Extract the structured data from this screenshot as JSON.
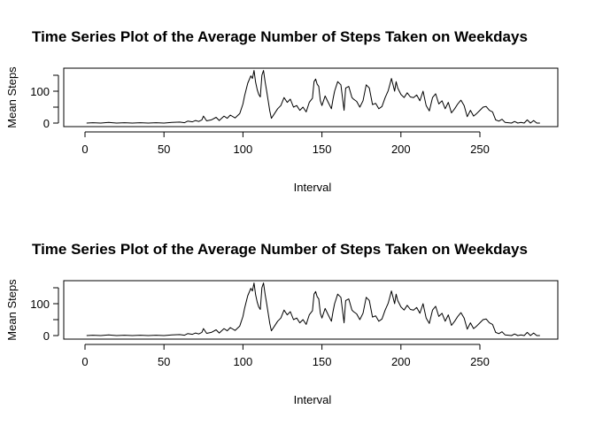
{
  "chart_data": [
    {
      "type": "line",
      "title": "Time Series Plot of the Average Number of Steps Taken on Weekdays",
      "xlabel": "Interval",
      "ylabel": "Mean Steps",
      "xlim": [
        0,
        288
      ],
      "ylim": [
        0,
        165
      ],
      "x_ticks": [
        0,
        50,
        100,
        150,
        200,
        250
      ],
      "y_ticks": [
        0,
        100
      ],
      "y_minor_ticks": [
        50,
        150
      ],
      "grid": false,
      "x": [
        1,
        5,
        10,
        15,
        20,
        25,
        30,
        35,
        40,
        45,
        50,
        55,
        60,
        63,
        65,
        68,
        70,
        72,
        74,
        75,
        77,
        80,
        83,
        85,
        88,
        90,
        92,
        95,
        98,
        100,
        101,
        103,
        105,
        106,
        107,
        108,
        109,
        110,
        111,
        112,
        113,
        114,
        115,
        116,
        117,
        118,
        120,
        122,
        124,
        126,
        128,
        130,
        132,
        134,
        136,
        138,
        140,
        142,
        144,
        145,
        146,
        147,
        148,
        149,
        150,
        152,
        154,
        156,
        157,
        158,
        160,
        162,
        164,
        165,
        167,
        169,
        170,
        172,
        174,
        176,
        178,
        180,
        182,
        184,
        186,
        188,
        190,
        192,
        194,
        195,
        196,
        197,
        198,
        200,
        202,
        204,
        206,
        208,
        210,
        212,
        214,
        216,
        218,
        220,
        222,
        224,
        226,
        228,
        230,
        232,
        234,
        236,
        238,
        240,
        242,
        244,
        246,
        248,
        250,
        252,
        254,
        256,
        258,
        260,
        262,
        264,
        266,
        268,
        270,
        272,
        274,
        276,
        278,
        280,
        282,
        284,
        286,
        288
      ],
      "y": [
        0,
        1,
        0,
        2,
        0,
        1,
        0,
        1,
        0,
        1,
        0,
        2,
        3,
        1,
        6,
        4,
        8,
        5,
        10,
        22,
        7,
        10,
        18,
        8,
        22,
        15,
        25,
        16,
        30,
        60,
        85,
        125,
        148,
        140,
        165,
        128,
        105,
        90,
        82,
        150,
        165,
        130,
        100,
        70,
        38,
        15,
        30,
        45,
        55,
        80,
        65,
        75,
        50,
        55,
        40,
        50,
        35,
        65,
        78,
        130,
        138,
        122,
        115,
        70,
        55,
        85,
        65,
        45,
        75,
        100,
        130,
        120,
        40,
        110,
        115,
        80,
        75,
        68,
        50,
        70,
        120,
        110,
        58,
        62,
        45,
        52,
        80,
        102,
        140,
        120,
        100,
        130,
        110,
        90,
        80,
        95,
        82,
        80,
        88,
        70,
        100,
        55,
        38,
        80,
        92,
        60,
        70,
        45,
        65,
        32,
        45,
        60,
        72,
        55,
        20,
        40,
        22,
        30,
        40,
        50,
        52,
        40,
        35,
        10,
        6,
        12,
        2,
        1,
        0,
        5,
        0,
        2,
        0,
        10,
        0,
        8,
        0,
        0
      ]
    },
    {
      "type": "line",
      "title": "Time Series Plot of the Average Number of Steps Taken on Weekdays",
      "xlabel": "Interval",
      "ylabel": "Mean Steps",
      "xlim": [
        0,
        288
      ],
      "ylim": [
        0,
        165
      ],
      "x_ticks": [
        0,
        50,
        100,
        150,
        200,
        250
      ],
      "y_ticks": [
        0,
        100
      ],
      "y_minor_ticks": [
        50,
        150
      ],
      "grid": false,
      "x": [
        1,
        5,
        10,
        15,
        20,
        25,
        30,
        35,
        40,
        45,
        50,
        55,
        60,
        63,
        65,
        68,
        70,
        72,
        74,
        75,
        77,
        80,
        83,
        85,
        88,
        90,
        92,
        95,
        98,
        100,
        101,
        103,
        105,
        106,
        107,
        108,
        109,
        110,
        111,
        112,
        113,
        114,
        115,
        116,
        117,
        118,
        120,
        122,
        124,
        126,
        128,
        130,
        132,
        134,
        136,
        138,
        140,
        142,
        144,
        145,
        146,
        147,
        148,
        149,
        150,
        152,
        154,
        156,
        157,
        158,
        160,
        162,
        164,
        165,
        167,
        169,
        170,
        172,
        174,
        176,
        178,
        180,
        182,
        184,
        186,
        188,
        190,
        192,
        194,
        195,
        196,
        197,
        198,
        200,
        202,
        204,
        206,
        208,
        210,
        212,
        214,
        216,
        218,
        220,
        222,
        224,
        226,
        228,
        230,
        232,
        234,
        236,
        238,
        240,
        242,
        244,
        246,
        248,
        250,
        252,
        254,
        256,
        258,
        260,
        262,
        264,
        266,
        268,
        270,
        272,
        274,
        276,
        278,
        280,
        282,
        284,
        286,
        288
      ],
      "y": [
        0,
        1,
        0,
        2,
        0,
        1,
        0,
        1,
        0,
        1,
        0,
        2,
        3,
        1,
        6,
        4,
        8,
        5,
        10,
        22,
        7,
        10,
        18,
        8,
        22,
        15,
        25,
        16,
        30,
        60,
        85,
        125,
        148,
        140,
        165,
        128,
        105,
        90,
        82,
        150,
        165,
        130,
        100,
        70,
        38,
        15,
        30,
        45,
        55,
        80,
        65,
        75,
        50,
        55,
        40,
        50,
        35,
        65,
        78,
        130,
        138,
        122,
        115,
        70,
        55,
        85,
        65,
        45,
        75,
        100,
        130,
        120,
        40,
        110,
        115,
        80,
        75,
        68,
        50,
        70,
        120,
        110,
        58,
        62,
        45,
        52,
        80,
        102,
        140,
        120,
        100,
        130,
        110,
        90,
        80,
        95,
        82,
        80,
        88,
        70,
        100,
        55,
        38,
        80,
        92,
        60,
        70,
        45,
        65,
        32,
        45,
        60,
        72,
        55,
        20,
        40,
        22,
        30,
        40,
        50,
        52,
        40,
        35,
        10,
        6,
        12,
        2,
        1,
        0,
        5,
        0,
        2,
        0,
        10,
        0,
        8,
        0,
        0
      ]
    }
  ]
}
